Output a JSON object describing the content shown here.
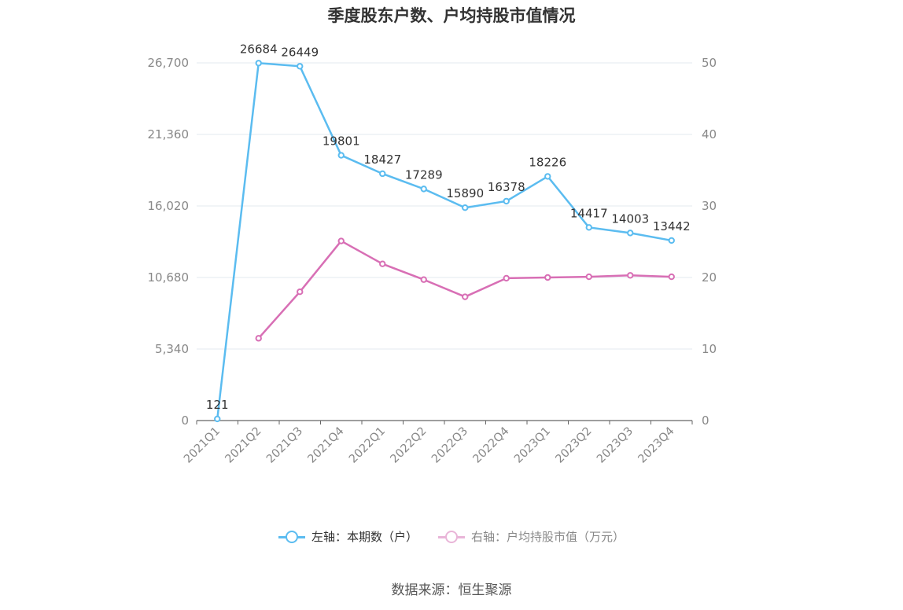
{
  "chart_data": {
    "type": "line",
    "title": "季度股东户数、户均持股市值情况",
    "categories": [
      "2021Q1",
      "2021Q2",
      "2021Q3",
      "2021Q4",
      "2022Q1",
      "2022Q2",
      "2022Q3",
      "2022Q4",
      "2023Q1",
      "2023Q2",
      "2023Q3",
      "2023Q4"
    ],
    "series": [
      {
        "name": "左轴：本期数（户）",
        "axis": "left",
        "color": "#5bbcf0",
        "values": [
          121,
          26684,
          26449,
          19801,
          18427,
          17289,
          15890,
          16378,
          18226,
          14417,
          14003,
          13442
        ],
        "labels": [
          "121",
          "26684",
          "26449",
          "19801",
          "18427",
          "17289",
          "15890",
          "16378",
          "18226",
          "14417",
          "14003",
          "13442"
        ]
      },
      {
        "name": "右轴：户均持股市值（万元）",
        "axis": "right",
        "color": "#d86fb5",
        "values": [
          null,
          11.5,
          18.0,
          25.1,
          21.9,
          19.7,
          17.3,
          19.9,
          20.0,
          20.1,
          20.3,
          20.1
        ]
      }
    ],
    "left_axis": {
      "min": 0,
      "max": 26700,
      "ticks": [
        0,
        5340,
        10680,
        16020,
        21360,
        26700
      ],
      "tick_labels": [
        "0",
        "5,340",
        "10,680",
        "16,020",
        "21,360",
        "26,700"
      ]
    },
    "right_axis": {
      "min": 0,
      "max": 50,
      "ticks": [
        0,
        10,
        20,
        30,
        40,
        50
      ],
      "tick_labels": [
        "0",
        "10",
        "20",
        "30",
        "40",
        "50"
      ]
    },
    "grid": true,
    "legend_position": "bottom"
  },
  "source": "数据来源：恒生聚源"
}
